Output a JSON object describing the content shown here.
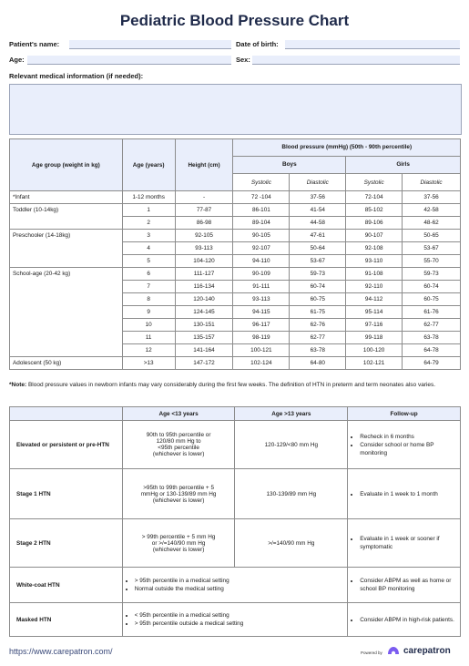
{
  "title": "Pediatric Blood Pressure Chart",
  "fields": {
    "patient_name": "Patient's name:",
    "dob": "Date of birth:",
    "age": "Age:",
    "sex": "Sex:",
    "medical_info": "Relevant medical information (if needed):"
  },
  "bp_table": {
    "col_age_group": "Age group (weight in kg)",
    "col_age_years": "Age (years)",
    "col_height": "Height (cm)",
    "bp_header": "Blood pressure (mmHg) (50th - 90th percentile)",
    "boys": "Boys",
    "girls": "Girls",
    "systolic": "Systolic",
    "diastolic": "Diastolic",
    "groups": {
      "infant": "*Infant",
      "toddler": "Toddler (10-14kg)",
      "preschooler": "Preschooler (14-18kg)",
      "schoolage": "School-age (20-42 kg)",
      "adolescent": "Adolescent (50 kg)"
    },
    "rows": [
      {
        "age": "1-12 months",
        "height": "-",
        "bs": "72 -104",
        "bd": "37-56",
        "gs": "72-104",
        "gd": "37-56"
      },
      {
        "age": "1",
        "height": "77-87",
        "bs": "86-101",
        "bd": "41-54",
        "gs": "85-102",
        "gd": "42-58"
      },
      {
        "age": "2",
        "height": "86-98",
        "bs": "89-104",
        "bd": "44-58",
        "gs": "89-106",
        "gd": "48-62"
      },
      {
        "age": "3",
        "height": "92-105",
        "bs": "90-105",
        "bd": "47-61",
        "gs": "90-107",
        "gd": "50-65"
      },
      {
        "age": "4",
        "height": "93-113",
        "bs": "92-107",
        "bd": "50-64",
        "gs": "92-108",
        "gd": "53-67"
      },
      {
        "age": "5",
        "height": "104-120",
        "bs": "94-110",
        "bd": "53-67",
        "gs": "93-110",
        "gd": "55-70"
      },
      {
        "age": "6",
        "height": "111-127",
        "bs": "90-109",
        "bd": "59-73",
        "gs": "91-108",
        "gd": "59-73"
      },
      {
        "age": "7",
        "height": "116-134",
        "bs": "91-111",
        "bd": "60-74",
        "gs": "92-110",
        "gd": "60-74"
      },
      {
        "age": "8",
        "height": "120-140",
        "bs": "93-113",
        "bd": "60-75",
        "gs": "94-112",
        "gd": "60-75"
      },
      {
        "age": "9",
        "height": "124-145",
        "bs": "94-115",
        "bd": "61-75",
        "gs": "95-114",
        "gd": "61-76"
      },
      {
        "age": "10",
        "height": "130-151",
        "bs": "96-117",
        "bd": "62-76",
        "gs": "97-116",
        "gd": "62-77"
      },
      {
        "age": "11",
        "height": "135-157",
        "bs": "98-119",
        "bd": "62-77",
        "gs": "99-118",
        "gd": "63-78"
      },
      {
        "age": "12",
        "height": "141-164",
        "bs": "100-121",
        "bd": "63-78",
        "gs": "100-120",
        "gd": "64-78"
      },
      {
        "age": ">13",
        "height": "147-172",
        "bs": "102-124",
        "bd": "64-80",
        "gs": "102-121",
        "gd": "64-79"
      }
    ]
  },
  "note": {
    "label": "*Note:",
    "text": " Blood pressure values in newborn infants may vary considerably during the first few weeks. The definition of HTN in preterm and term neonates also varies."
  },
  "htn_table": {
    "col_lt13": "Age <13 years",
    "col_gt13": "Age >13 years",
    "col_followup": "Follow-up",
    "elevated": {
      "name": "Elevated or persistent or pre-HTN",
      "lt13": [
        "90th to 95th percentile or",
        "120/80 mm Hg to",
        "<95th percentile",
        "(whichever is lower)"
      ],
      "gt13": "120-129/<80 mm Hg",
      "followup": [
        "Recheck in 6 months",
        "Consider school or home BP monitoring"
      ]
    },
    "stage1": {
      "name": "Stage 1 HTN",
      "lt13": [
        ">95th to 99th percentile + 5",
        "mmHg or 130-139/89 mm Hg",
        "(whichever is lower)"
      ],
      "gt13": "130-139/89 mm Hg",
      "followup": [
        "Evaluate in 1 week to 1 month"
      ]
    },
    "stage2": {
      "name": "Stage 2 HTN",
      "lt13": [
        "> 99th percentile + 5 mm Hg",
        "or >/=140/90 mm Hg",
        "(whichever is lower)"
      ],
      "gt13": ">/=140/90 mm Hg",
      "followup": [
        "Evaluate in 1 week or sooner if symptomatic"
      ]
    },
    "whitecoat": {
      "name": "White-coat HTN",
      "combined": [
        "> 95th percentile in a medical setting",
        "Normal outside the medical setting"
      ],
      "followup": [
        "Consider ABPM as well as home or school BP monitoring"
      ]
    },
    "masked": {
      "name": "Masked HTN",
      "combined": [
        "< 95th percentile in a medical setting",
        "> 95th percentile outside a medical setting"
      ],
      "followup": [
        "Consider ABPM in high-risk patients."
      ]
    }
  },
  "footer": {
    "link": "https://www.carepatron.com/",
    "powered_by": "Powered by",
    "brand": "carepatron"
  },
  "colors": {
    "field_fill": "#e9eefb",
    "header_fill": "#e9eefb",
    "brand_purple": "#7b5cf0",
    "title_color": "#1f2a4a"
  }
}
